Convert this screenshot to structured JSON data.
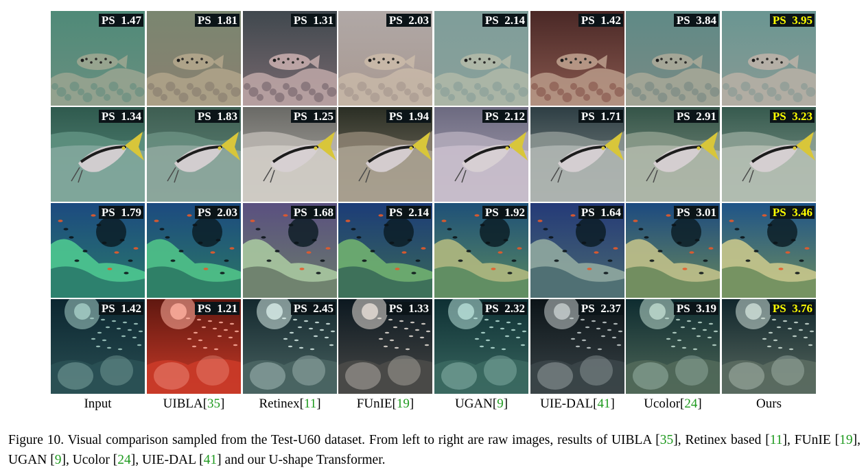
{
  "caption": {
    "parts": [
      {
        "t": "Figure 10.  Visual comparison sampled from the Test-U60 dataset.  From left to right are raw images, results of UIBLA ["
      },
      {
        "t": "35",
        "cite": true
      },
      {
        "t": "], Retinex based ["
      },
      {
        "t": "11",
        "cite": true
      },
      {
        "t": "], FUnIE ["
      },
      {
        "t": "19",
        "cite": true
      },
      {
        "t": "], UGAN ["
      },
      {
        "t": "9",
        "cite": true
      },
      {
        "t": "], Ucolor ["
      },
      {
        "t": "24",
        "cite": true
      },
      {
        "t": "], UIE-DAL ["
      },
      {
        "t": "41",
        "cite": true
      },
      {
        "t": "] and our U-shape Transformer."
      }
    ]
  },
  "methods": [
    {
      "name": "Input",
      "ref": "",
      "close": ""
    },
    {
      "name": "UIBLA[",
      "ref": "35",
      "close": "]"
    },
    {
      "name": "Retinex[",
      "ref": "11",
      "close": "]"
    },
    {
      "name": "FUnIE[",
      "ref": "19",
      "close": "]"
    },
    {
      "name": "UGAN[",
      "ref": "9",
      "close": "]"
    },
    {
      "name": "UIE-DAL[",
      "ref": "41",
      "close": "]"
    },
    {
      "name": "Ucolor[",
      "ref": "24",
      "close": "]"
    },
    {
      "name": "Ours",
      "ref": "",
      "close": ""
    }
  ],
  "score_prefix": "PS",
  "colors": {
    "best_score": "#ffff00",
    "score_text": "#ffffff",
    "score_bg": "#0b1418",
    "citation": "#1f9a1f"
  },
  "rows": [
    {
      "scene": "pufferfish-on-reef",
      "scores": [
        "1.47",
        "1.81",
        "1.31",
        "2.03",
        "2.14",
        "1.42",
        "3.84",
        "3.95"
      ],
      "best": 7,
      "tints": [
        {
          "bg": "#4f8a78",
          "mid": "#6a8f80",
          "fg": "#9aa590"
        },
        {
          "bg": "#7a8670",
          "mid": "#8a8070",
          "fg": "#b0a48a"
        },
        {
          "bg": "#40484e",
          "mid": "#7a6a70",
          "fg": "#c0a8a8"
        },
        {
          "bg": "#b0a8a6",
          "mid": "#a89890",
          "fg": "#c8b8a8"
        },
        {
          "bg": "#7f9e9a",
          "mid": "#8aa09a",
          "fg": "#b0b8a8"
        },
        {
          "bg": "#4a2826",
          "mid": "#8a5a50",
          "fg": "#b89a88"
        },
        {
          "bg": "#5f8a86",
          "mid": "#7a8a84",
          "fg": "#a8a898"
        },
        {
          "bg": "#6a9692",
          "mid": "#8a9a94",
          "fg": "#b8b0a6"
        }
      ]
    },
    {
      "scene": "goatfish-on-sand",
      "scores": [
        "1.34",
        "1.83",
        "1.25",
        "1.94",
        "2.12",
        "1.71",
        "2.91",
        "3.23"
      ],
      "best": 7,
      "tints": [
        {
          "bg": "#2f5a4e",
          "mid": "#5e9080",
          "fg": "#9ab8b0"
        },
        {
          "bg": "#3e5e52",
          "mid": "#688e80",
          "fg": "#a8bab2"
        },
        {
          "bg": "#6a6a66",
          "mid": "#b8b4ae",
          "fg": "#e0dcd6"
        },
        {
          "bg": "#2a2e24",
          "mid": "#8a8070",
          "fg": "#c0b8a8"
        },
        {
          "bg": "#6c6a80",
          "mid": "#b0a8b8",
          "fg": "#d8ccd8"
        },
        {
          "bg": "#2e3e44",
          "mid": "#8a9490",
          "fg": "#c8ccc8"
        },
        {
          "bg": "#345448",
          "mid": "#8a9a8a",
          "fg": "#c8ccc0"
        },
        {
          "bg": "#365a4e",
          "mid": "#8ca094",
          "fg": "#cfd4c8"
        }
      ]
    },
    {
      "scene": "coral-reef-fish",
      "scores": [
        "1.79",
        "2.03",
        "1.68",
        "2.14",
        "1.92",
        "1.64",
        "3.01",
        "3.46"
      ],
      "best": 7,
      "tints": [
        {
          "bg": "#1c4a80",
          "mid": "#2a7a6a",
          "fg": "#4ec890"
        },
        {
          "bg": "#1c4a80",
          "mid": "#2c7a64",
          "fg": "#50c288"
        },
        {
          "bg": "#5a5080",
          "mid": "#6a7c6a",
          "fg": "#a8c8a0"
        },
        {
          "bg": "#1c3c78",
          "mid": "#3a6a58",
          "fg": "#70b070"
        },
        {
          "bg": "#1e5078",
          "mid": "#5a8a60",
          "fg": "#b0b880"
        },
        {
          "bg": "#243a78",
          "mid": "#4a6a70",
          "fg": "#90a8a0"
        },
        {
          "bg": "#1c4a80",
          "mid": "#6a8a5c",
          "fg": "#c0c08a"
        },
        {
          "bg": "#1f5488",
          "mid": "#6e8e5e",
          "fg": "#c8c68c"
        }
      ]
    },
    {
      "scene": "dark-school-of-fish",
      "scores": [
        "1.42",
        "1.21",
        "2.45",
        "1.33",
        "2.32",
        "2.37",
        "3.19",
        "3.76"
      ],
      "best": 7,
      "tints": [
        {
          "bg": "#0c2630",
          "mid": "#2a5054",
          "fg": "#a8d0c8"
        },
        {
          "bg": "#601810",
          "mid": "#c83a28",
          "fg": "#ffb0a0"
        },
        {
          "bg": "#14282e",
          "mid": "#4a6462",
          "fg": "#d8ece8"
        },
        {
          "bg": "#0c1820",
          "mid": "#4a4a48",
          "fg": "#e8e0d8"
        },
        {
          "bg": "#0e3034",
          "mid": "#3a6860",
          "fg": "#b8e0d8"
        },
        {
          "bg": "#0c1418",
          "mid": "#3a4448",
          "fg": "#c8d0d0"
        },
        {
          "bg": "#0e2c30",
          "mid": "#506858",
          "fg": "#c0dcd0"
        },
        {
          "bg": "#10262c",
          "mid": "#5a6a60",
          "fg": "#d0e0d8"
        }
      ]
    }
  ]
}
